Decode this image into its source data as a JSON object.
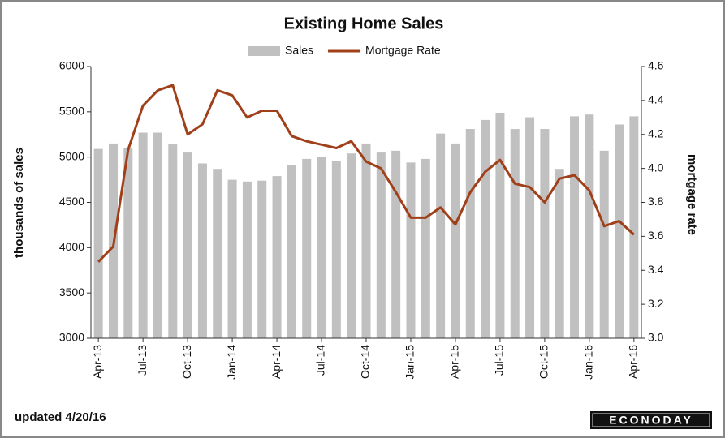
{
  "chart_data": {
    "type": "bar",
    "title": "Existing Home Sales",
    "y_label": "thousands of sales",
    "y2_label": "mortgage rate",
    "note": "updated 4/20/16",
    "source": "ECONODAY",
    "categories": [
      "Apr-13",
      null,
      null,
      "Jul-13",
      null,
      null,
      "Oct-13",
      null,
      null,
      "Jan-14",
      null,
      null,
      "Apr-14",
      null,
      null,
      "Jul-14",
      null,
      null,
      "Oct-14",
      null,
      null,
      "Jan-15",
      null,
      null,
      "Apr-15",
      null,
      null,
      "Jul-15",
      null,
      null,
      "Oct-15",
      null,
      null,
      "Jan-16",
      null,
      null,
      "Apr-16"
    ],
    "series": [
      {
        "name": "Sales",
        "type": "bar",
        "color": "#c0c0c0",
        "values": [
          5090,
          5150,
          5100,
          5270,
          5270,
          5140,
          5050,
          4930,
          4870,
          4750,
          4730,
          4740,
          4790,
          4910,
          4980,
          5000,
          4960,
          5040,
          5150,
          5050,
          5070,
          4940,
          4980,
          5260,
          5150,
          5310,
          5410,
          5490,
          5310,
          5440,
          5310,
          4870,
          5450,
          5470,
          5070,
          5360,
          5450
        ]
      },
      {
        "name": "Mortgage Rate",
        "type": "line",
        "axis": "y2",
        "color": "#a0401a",
        "values": [
          3.45,
          3.54,
          4.11,
          4.37,
          4.46,
          4.49,
          4.2,
          4.26,
          4.46,
          4.43,
          4.3,
          4.34,
          4.34,
          4.19,
          4.16,
          4.14,
          4.12,
          4.16,
          4.04,
          4.0,
          3.86,
          3.71,
          3.71,
          3.77,
          3.67,
          3.86,
          3.98,
          4.05,
          3.91,
          3.89,
          3.8,
          3.94,
          3.96,
          3.87,
          3.66,
          3.69,
          3.61
        ]
      }
    ],
    "ylim": [
      3000,
      6000
    ],
    "yticks": [
      3000,
      3500,
      4000,
      4500,
      5000,
      5500,
      6000
    ],
    "y2lim": [
      3.0,
      4.6
    ],
    "y2ticks": [
      {
        "value": 3.0,
        "label": "3.0"
      },
      3.2,
      3.4,
      3.6,
      3.8,
      {
        "value": 4.0,
        "label": "4.0"
      },
      4.2,
      4.4,
      4.6
    ],
    "grid": false
  }
}
